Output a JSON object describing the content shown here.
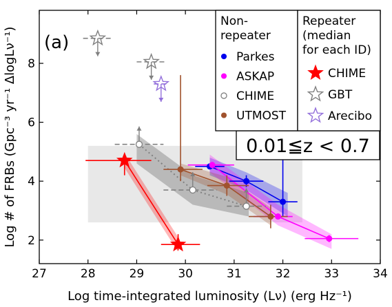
{
  "chart_data": {
    "type": "scatter",
    "panel_label": "(a)",
    "xlabel": "Log time-integrated luminosity (Lν) (erg Hz⁻¹)",
    "ylabel": "Log # of FRBs (Gpc⁻³ yr⁻¹ ΔlogLν⁻¹)",
    "xlim": [
      27,
      34
    ],
    "ylim": [
      1.2,
      9.8
    ],
    "x_ticks": [
      "27",
      "28",
      "29",
      "30",
      "31",
      "32",
      "33",
      "34"
    ],
    "y_ticks": [
      "2",
      "4",
      "6",
      "8"
    ],
    "z_range_label": "0.01≦z < 0.7",
    "grey_region": {
      "x": [
        28.0,
        32.4
      ],
      "y": [
        2.6,
        5.2
      ]
    },
    "legend_nonrepeater": {
      "title": "Non-\nrepeater",
      "entries": [
        {
          "label": "Parkes",
          "color": "#0000ee",
          "marker": "circle"
        },
        {
          "label": "ASKAP",
          "color": "#ff00ff",
          "marker": "circle"
        },
        {
          "label": "CHIME",
          "color": "#808080",
          "marker": "open-circle"
        },
        {
          "label": "UTMOST",
          "color": "#a0522d",
          "marker": "circle"
        }
      ]
    },
    "legend_repeater": {
      "title": "Repeater\n(median\nfor each ID)",
      "entries": [
        {
          "label": "CHIME",
          "color": "#ff0000",
          "marker": "filled-star"
        },
        {
          "label": "GBT",
          "color": "#808080",
          "marker": "open-star"
        },
        {
          "label": "Arecibo",
          "color": "#9370db",
          "marker": "open-star"
        }
      ]
    },
    "series": [
      {
        "name": "Parkes",
        "color": "#0000ee",
        "marker": "circle",
        "points": [
          {
            "x": 30.5,
            "y": 4.5,
            "xerr": [
              0.3,
              0.3
            ]
          },
          {
            "x": 31.25,
            "y": 4.0,
            "xerr": [
              0.35,
              0.35
            ],
            "yerr": [
              0.2,
              0.2
            ]
          },
          {
            "x": 32.0,
            "y": 3.3,
            "xerr": [
              0.3,
              0.3
            ],
            "yerr": [
              0.5,
              2.0
            ]
          }
        ],
        "band": [
          [
            30.5,
            4.8,
            4.2
          ],
          [
            31.25,
            4.3,
            3.7
          ],
          [
            32.1,
            3.6,
            2.8
          ]
        ]
      },
      {
        "name": "ASKAP",
        "color": "#ff00ff",
        "marker": "circle",
        "points": [
          {
            "x": 30.55,
            "y": 4.55,
            "xerr": [
              0.5,
              0.45
            ]
          },
          {
            "x": 31.9,
            "y": 2.8,
            "xerr": [
              0.5,
              0.3
            ]
          },
          {
            "x": 32.95,
            "y": 2.05,
            "xerr": [
              0.5,
              0.6
            ],
            "yerr": [
              0.12,
              0.12
            ]
          }
        ],
        "band": [
          [
            30.5,
            4.9,
            4.3
          ],
          [
            31.9,
            3.2,
            2.5
          ],
          [
            33.0,
            2.2,
            1.7
          ]
        ]
      },
      {
        "name": "CHIME (non-repeater)",
        "color": "#808080",
        "marker": "open-circle",
        "points": [
          {
            "x": 29.05,
            "y": 5.25,
            "xerr": [
              0.5,
              0.5
            ],
            "lower_limit": true
          },
          {
            "x": 30.15,
            "y": 3.7,
            "xerr": [
              0.6,
              0.5
            ],
            "lower_limit": true
          },
          {
            "x": 31.25,
            "y": 3.15,
            "xerr": [
              0.4,
              0.4
            ],
            "lower_limit": true
          }
        ],
        "band": [
          [
            29.0,
            5.6,
            4.6
          ],
          [
            30.15,
            4.2,
            3.2
          ],
          [
            31.3,
            3.6,
            2.8
          ]
        ]
      },
      {
        "name": "UTMOST",
        "color": "#a0522d",
        "marker": "circle",
        "points": [
          {
            "x": 29.9,
            "y": 4.4,
            "xerr": [
              0.35,
              0.45
            ],
            "yerr": [
              0.4,
              3.2
            ]
          },
          {
            "x": 30.85,
            "y": 3.85,
            "xerr": [
              0.4,
              0.45
            ],
            "yerr": [
              0.35,
              0.35
            ]
          },
          {
            "x": 31.75,
            "y": 2.8,
            "xerr": [
              0.45,
              0.35
            ],
            "yerr": [
              0.4,
              0.4
            ]
          }
        ],
        "band": [
          [
            29.9,
            4.6,
            4.2
          ],
          [
            30.85,
            4.15,
            3.55
          ],
          [
            31.75,
            3.1,
            2.5
          ]
        ]
      },
      {
        "name": "CHIME repeater",
        "color": "#ff0000",
        "marker": "filled-star",
        "points": [
          {
            "x": 28.75,
            "y": 4.7,
            "xerr": [
              0.8,
              0.55
            ],
            "yerr": [
              0.5,
              0.2
            ]
          },
          {
            "x": 29.85,
            "y": 1.85,
            "xerr": [
              0.35,
              0.45
            ],
            "yerr": [
              0.2,
              0.35
            ]
          }
        ],
        "band": [
          [
            28.75,
            4.95,
            4.45
          ],
          [
            29.85,
            2.1,
            1.6
          ]
        ]
      },
      {
        "name": "GBT",
        "color": "#808080",
        "marker": "open-star",
        "points": [
          {
            "x": 28.2,
            "y": 8.85,
            "xerr": [
              0.3,
              0.3
            ],
            "upper_limit": true
          },
          {
            "x": 29.3,
            "y": 8.05,
            "xerr": [
              0.3,
              0.3
            ],
            "upper_limit": true
          }
        ]
      },
      {
        "name": "Arecibo",
        "color": "#9370db",
        "marker": "open-star",
        "points": [
          {
            "x": 29.5,
            "y": 7.3,
            "xerr": [
              0.15,
              0.15
            ],
            "upper_limit": true
          }
        ]
      }
    ]
  }
}
